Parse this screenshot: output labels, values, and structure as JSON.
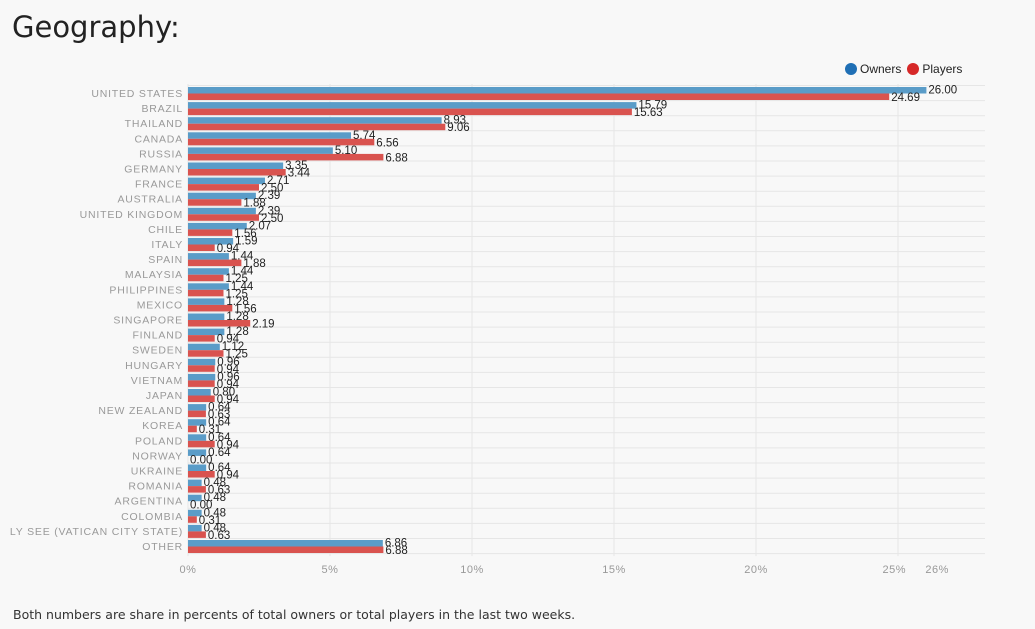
{
  "page": {
    "title": "Geography:",
    "footer": "Both numbers are share in percents of total owners or total players in the last two weeks."
  },
  "colors": {
    "owners": "#5a9cc8",
    "players": "#d9534f",
    "grid": "#e6e6e6",
    "text": "#999999"
  },
  "chart_data": {
    "type": "bar",
    "orientation": "horizontal",
    "categories": [
      "UNITED STATES",
      "BRAZIL",
      "THAILAND",
      "CANADA",
      "RUSSIA",
      "GERMANY",
      "FRANCE",
      "AUSTRALIA",
      "UNITED KINGDOM",
      "CHILE",
      "ITALY",
      "SPAIN",
      "MALAYSIA",
      "PHILIPPINES",
      "MEXICO",
      "SINGAPORE",
      "FINLAND",
      "SWEDEN",
      "HUNGARY",
      "VIETNAM",
      "JAPAN",
      "NEW ZEALAND",
      "KOREA",
      "POLAND",
      "NORWAY",
      "UKRAINE",
      "ROMANIA",
      "ARGENTINA",
      "COLOMBIA",
      "LY SEE (VATICAN CITY STATE)",
      "OTHER"
    ],
    "series": [
      {
        "name": "Owners",
        "values": [
          26.0,
          15.79,
          8.93,
          5.74,
          5.1,
          3.35,
          2.71,
          2.39,
          2.39,
          2.07,
          1.59,
          1.44,
          1.44,
          1.44,
          1.28,
          1.28,
          1.28,
          1.12,
          0.96,
          0.96,
          0.8,
          0.64,
          0.64,
          0.64,
          0.64,
          0.64,
          0.48,
          0.48,
          0.48,
          0.48,
          6.86
        ]
      },
      {
        "name": "Players",
        "values": [
          24.69,
          15.63,
          9.06,
          6.56,
          6.88,
          3.44,
          2.5,
          1.88,
          2.5,
          1.56,
          0.94,
          1.88,
          1.25,
          1.25,
          1.56,
          2.19,
          0.94,
          1.25,
          0.94,
          0.94,
          0.94,
          0.63,
          0.31,
          0.94,
          0.0,
          0.94,
          0.63,
          0.0,
          0.31,
          0.63,
          6.88
        ]
      }
    ],
    "value_labels": {
      "owners": [
        "26.00",
        "15.79",
        "8.93",
        "5.74",
        "5.10",
        "3.35",
        "2.71",
        "2.39",
        "2.39",
        "2.07",
        "1.59",
        "1.44",
        "1.44",
        "1.44",
        "1.28",
        "1.28",
        "1.28",
        "1.12",
        "0.96",
        "0.96",
        "0.80",
        "0.64",
        "0.64",
        "0.64",
        "0.64",
        "0.64",
        "0.48",
        "0.48",
        "0.48",
        "0.48",
        "6.86"
      ],
      "players": [
        "24.69",
        "15.63",
        "9.06",
        "6.56",
        "6.88",
        "3.44",
        "2.50",
        "1.88",
        "2.50",
        "1.56",
        "0.94",
        "1.88",
        "1.25",
        "1.25",
        "1.56",
        "2.19",
        "0.94",
        "1.25",
        "0.94",
        "0.94",
        "0.94",
        "0.63",
        "0.31",
        "0.94",
        "0.00",
        "0.94",
        "0.63",
        "0.00",
        "0.31",
        "0.63",
        "6.88"
      ]
    },
    "x_ticks": [
      0,
      5,
      10,
      15,
      20,
      25,
      26
    ],
    "x_tick_labels": [
      "0%",
      "5%",
      "10%",
      "15%",
      "20%",
      "25%",
      "26%"
    ],
    "xlim": [
      0,
      28
    ],
    "legend_position": "top-right",
    "grid": true
  }
}
